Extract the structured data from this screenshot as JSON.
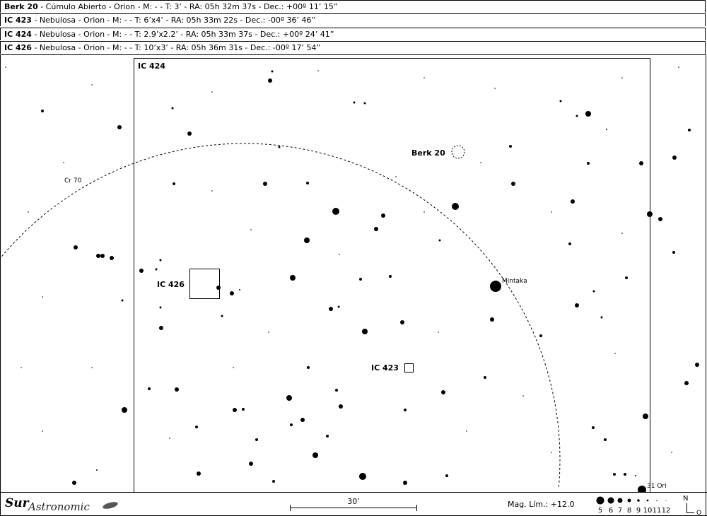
{
  "header_rows": [
    {
      "name": "Berk 20",
      "details": " - Cúmulo Abierto - Orion - M: - - T: 3’ - RA: 05h 32m 37s - Dec.: +00º 11’ 15”"
    },
    {
      "name": "IC 423",
      "details": " - Nebulosa - Orion - M: - - T: 6’x4’ - RA: 05h 33m 22s - Dec.: -00º 36’ 46”"
    },
    {
      "name": "IC 424",
      "details": " - Nebulosa - Orion - M: - - T: 2.9’x2.2’ - RA: 05h 33m 37s - Dec.: +00º 24’ 41”"
    },
    {
      "name": "IC 426",
      "details": " - Nebulosa - Orion - M: - - T: 10’x3’ - RA: 05h 36m 31s - Dec.: -00º 17’ 54”"
    }
  ],
  "map_labels": {
    "ic424": "IC 424",
    "berk20": "Berk 20",
    "ic426": "IC 426",
    "ic423": "IC 423",
    "cr70": "Cr 70",
    "mintaka": "Mintaka",
    "ori31": "31 Ori"
  },
  "footer": {
    "logo": "SurAstronomico",
    "logo_sur": "Sur",
    "logo_astro": "Astronomic",
    "scale_label": "30’",
    "mag_limit": "Mag. Lím.: +12.0",
    "mag_legend": [
      "5",
      "6",
      "7",
      "8",
      "9",
      "10",
      "11",
      "12"
    ],
    "compass_n": "N",
    "compass_o": "O"
  }
}
